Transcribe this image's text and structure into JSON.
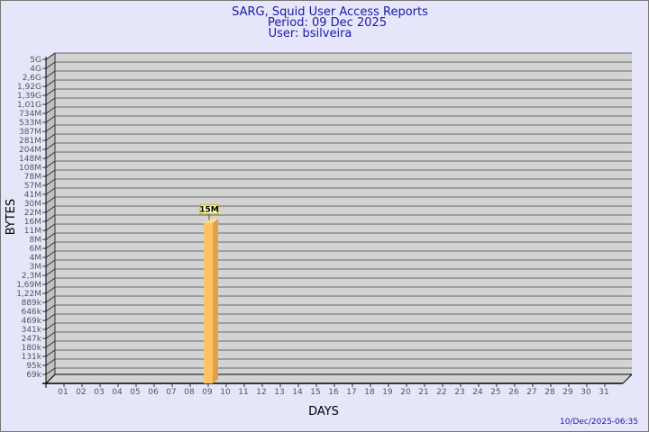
{
  "chart_data": {
    "type": "bar",
    "title": "SARG, Squid User Access Reports",
    "subtitle": [
      "Period: 09 Dec 2025",
      "User: bsilveira"
    ],
    "xlabel": "DAYS",
    "ylabel": "BYTES",
    "y_scale": "log",
    "y_tick_labels": [
      "5G",
      "4G",
      "2,6G",
      "1,92G",
      "1,39G",
      "1,01G",
      "734M",
      "533M",
      "387M",
      "281M",
      "204M",
      "148M",
      "108M",
      "78M",
      "57M",
      "41M",
      "30M",
      "22M",
      "16M",
      "11M",
      "8M",
      "6M",
      "4M",
      "3M",
      "2,3M",
      "1,69M",
      "1,22M",
      "889k",
      "646k",
      "469k",
      "341k",
      "247k",
      "180k",
      "131k",
      "95k",
      "69k"
    ],
    "categories": [
      "01",
      "02",
      "03",
      "04",
      "05",
      "06",
      "07",
      "08",
      "09",
      "10",
      "11",
      "12",
      "13",
      "14",
      "15",
      "16",
      "17",
      "18",
      "19",
      "20",
      "21",
      "22",
      "23",
      "24",
      "25",
      "26",
      "27",
      "28",
      "29",
      "30",
      "31"
    ],
    "bars": [
      {
        "category": "09",
        "value": "15M"
      }
    ],
    "grid": true,
    "colors": {
      "bar": "#ffc266",
      "bar_side": "#e0a04a",
      "bar_top": "#ffe08a",
      "plot": "#d3d3d3",
      "background": "#e6e6fa",
      "title": "#1a1aa0"
    }
  },
  "footer": {
    "timestamp": "10/Dec/2025-06:35"
  }
}
